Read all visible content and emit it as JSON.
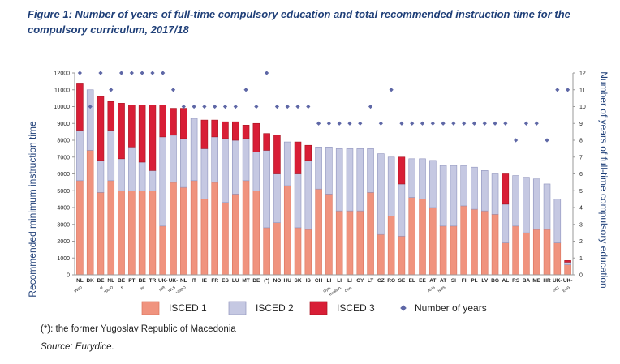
{
  "title": "Figure 1: Number of years of full-time compulsory education and total recommended instruction time for the compulsory curriculum, 2017/18",
  "footnote": "(*): the former Yugoslav Republic of Macedonia",
  "source_label": "Source:",
  "source_value": " Eurydice.",
  "colors": {
    "isced1": "#f0937e",
    "isced2": "#c5c8e2",
    "isced3": "#d81e36",
    "years": "#5e67a6",
    "title": "#1f3f78"
  },
  "chart_data": {
    "type": "bar",
    "stacked": true,
    "ylabel": "Recommended minimum instruction time",
    "y2label": "Number of years of full-time compulsory education",
    "ylim": [
      0,
      12000
    ],
    "y_ticks": [
      0,
      1000,
      2000,
      3000,
      4000,
      5000,
      6000,
      7000,
      8000,
      9000,
      10000,
      11000,
      12000
    ],
    "y2lim": [
      0,
      12
    ],
    "y2_ticks": [
      0,
      1,
      2,
      3,
      4,
      5,
      6,
      7,
      8,
      9,
      10,
      11,
      12
    ],
    "grid": false,
    "legend": "bottom",
    "categories": [
      {
        "label": "NL",
        "sub": "VWO"
      },
      {
        "label": "DK",
        "sub": ""
      },
      {
        "label": "BE",
        "sub": "nl"
      },
      {
        "label": "NL",
        "sub": "HAVO"
      },
      {
        "label": "BE",
        "sub": "fr"
      },
      {
        "label": "PT",
        "sub": ""
      },
      {
        "label": "BE",
        "sub": "de"
      },
      {
        "label": "TR",
        "sub": ""
      },
      {
        "label": "UK-",
        "sub": "NIR"
      },
      {
        "label": "UK-",
        "sub": "WLS"
      },
      {
        "label": "NL",
        "sub": "VMBO"
      },
      {
        "label": "IT",
        "sub": ""
      },
      {
        "label": "IE",
        "sub": ""
      },
      {
        "label": "FR",
        "sub": ""
      },
      {
        "label": "ES",
        "sub": ""
      },
      {
        "label": "LU",
        "sub": ""
      },
      {
        "label": "MT",
        "sub": ""
      },
      {
        "label": "DE",
        "sub": ""
      },
      {
        "label": "(*)",
        "sub": ""
      },
      {
        "label": "NO",
        "sub": ""
      },
      {
        "label": "HU",
        "sub": ""
      },
      {
        "label": "SK",
        "sub": ""
      },
      {
        "label": "IS",
        "sub": ""
      },
      {
        "label": "CH",
        "sub": ""
      },
      {
        "label": "LI",
        "sub": "Gym."
      },
      {
        "label": "LI",
        "sub": "Realsch."
      },
      {
        "label": "LI",
        "sub": "Obe."
      },
      {
        "label": "CY",
        "sub": ""
      },
      {
        "label": "LT",
        "sub": ""
      },
      {
        "label": "CZ",
        "sub": ""
      },
      {
        "label": "RO",
        "sub": ""
      },
      {
        "label": "SE",
        "sub": ""
      },
      {
        "label": "EL",
        "sub": ""
      },
      {
        "label": "EE",
        "sub": ""
      },
      {
        "label": "AT",
        "sub": "AHS"
      },
      {
        "label": "AT",
        "sub": "NMS"
      },
      {
        "label": "SI",
        "sub": ""
      },
      {
        "label": "FI",
        "sub": ""
      },
      {
        "label": "PL",
        "sub": ""
      },
      {
        "label": "LV",
        "sub": ""
      },
      {
        "label": "BG",
        "sub": ""
      },
      {
        "label": "AL",
        "sub": ""
      },
      {
        "label": "RS",
        "sub": ""
      },
      {
        "label": "BA",
        "sub": ""
      },
      {
        "label": "ME",
        "sub": ""
      },
      {
        "label": "HR",
        "sub": ""
      },
      {
        "label": "UK-",
        "sub": "SCT"
      },
      {
        "label": "UK-",
        "sub": "ENG"
      }
    ],
    "series": [
      {
        "name": "ISCED 1",
        "values": [
          5600,
          7400,
          4900,
          5600,
          5000,
          5000,
          5000,
          5000,
          2900,
          5500,
          5200,
          5600,
          4500,
          5500,
          4300,
          4800,
          5600,
          5000,
          2800,
          3100,
          5300,
          2800,
          2700,
          5100,
          4800,
          3800,
          3800,
          3800,
          4900,
          2400,
          3500,
          2300,
          4600,
          4500,
          4000,
          2900,
          2900,
          4100,
          3900,
          3800,
          3600,
          1900,
          2900,
          2500,
          2700,
          2700,
          1900,
          600
        ]
      },
      {
        "name": "ISCED 2",
        "values": [
          3000,
          3600,
          1900,
          3000,
          1900,
          2600,
          1700,
          1200,
          5300,
          2800,
          2900,
          3700,
          3000,
          2700,
          3800,
          3200,
          2500,
          2300,
          4600,
          2900,
          2600,
          3200,
          4100,
          2500,
          2800,
          3700,
          3700,
          3700,
          2600,
          4800,
          3500,
          3100,
          2300,
          2400,
          2800,
          3600,
          3600,
          2400,
          2500,
          2400,
          2400,
          2300,
          3000,
          3300,
          3000,
          2700,
          2600,
          150
        ]
      },
      {
        "name": "ISCED 3",
        "values": [
          2800,
          0,
          3800,
          1700,
          3300,
          2500,
          3400,
          3900,
          1900,
          1600,
          1800,
          0,
          1700,
          1000,
          1000,
          1100,
          800,
          1700,
          1000,
          2300,
          0,
          1900,
          900,
          0,
          0,
          0,
          0,
          0,
          0,
          0,
          0,
          1600,
          0,
          0,
          0,
          0,
          0,
          0,
          0,
          0,
          0,
          1800,
          0,
          0,
          0,
          0,
          0,
          100
        ]
      },
      {
        "name": "Number of years",
        "axis": "right",
        "marker": "diamond",
        "values": [
          12,
          10,
          12,
          11,
          12,
          12,
          12,
          12,
          12,
          11,
          10,
          10,
          10,
          10,
          10,
          10,
          11,
          10,
          12,
          10,
          10,
          10,
          10,
          9,
          9,
          9,
          9,
          9,
          10,
          9,
          11,
          9,
          9,
          9,
          9,
          9,
          9,
          9,
          9,
          9,
          9,
          9,
          8,
          9,
          9,
          8,
          11,
          11
        ]
      }
    ]
  }
}
